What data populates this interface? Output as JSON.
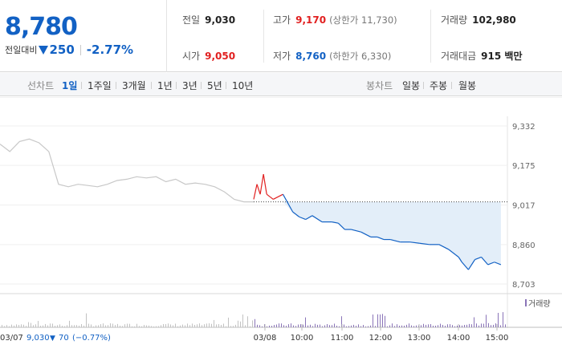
{
  "summary": {
    "price": "8,780",
    "diff_label": "전일대비",
    "diff_value": "250",
    "change_rate": "-2.77%",
    "prev_close": {
      "label": "전일",
      "value": "9,030"
    },
    "open": {
      "label": "시가",
      "value": "9,050"
    },
    "high": {
      "label": "고가",
      "value": "9,170",
      "limit_text": "(상한가 11,730)"
    },
    "low": {
      "label": "저가",
      "value": "8,760",
      "limit_text": "(하한가 6,330)"
    },
    "volume": {
      "label": "거래량",
      "value": "102,980"
    },
    "amount": {
      "label": "거래대금",
      "value": "915 백만"
    }
  },
  "tabs": {
    "line_label": "선차트",
    "line_tabs": [
      "1일",
      "1주일",
      "3개월",
      "1년",
      "3년",
      "5년",
      "10년"
    ],
    "active_line_tab": "1일",
    "candle_label": "봉차트",
    "candle_tabs": [
      "일봉",
      "주봉",
      "월봉"
    ]
  },
  "colors": {
    "up": "#e12020",
    "down": "#1261c4",
    "prev_day_line": "#c8c8c8",
    "fill": "#e3eef9",
    "volume": "#8a74b8"
  },
  "chart_data": {
    "type": "line",
    "ylim": [
      8703,
      9332
    ],
    "y_ticks": [
      "9,332",
      "9,175",
      "9,017",
      "8,860",
      "8,703"
    ],
    "y_tick_values": [
      9332,
      9175,
      9017,
      8860,
      8703
    ],
    "x_ticks": [
      "03/08",
      "10:00",
      "11:00",
      "12:00",
      "13:00",
      "14:00",
      "15:00"
    ],
    "prev_close_ref": 9030,
    "volume_legend": "거래량",
    "prev_day_footer": {
      "date": "03/07",
      "close": "9,030",
      "arrow": "▼",
      "change": "70",
      "rate": "(−0.77%)"
    },
    "series": [
      {
        "name": "03/07",
        "x": [
          "09:00",
          "09:15",
          "09:30",
          "09:45",
          "10:00",
          "10:15",
          "10:30",
          "10:45",
          "11:00",
          "11:15",
          "11:30",
          "11:45",
          "12:00",
          "12:15",
          "12:30",
          "12:45",
          "13:00",
          "13:15",
          "13:30",
          "13:45",
          "14:00",
          "14:15",
          "14:30",
          "14:45",
          "15:00",
          "15:15",
          "15:30"
        ],
        "values": [
          9260,
          9230,
          9270,
          9280,
          9265,
          9230,
          9100,
          9090,
          9100,
          9095,
          9090,
          9100,
          9115,
          9120,
          9130,
          9125,
          9130,
          9110,
          9120,
          9100,
          9105,
          9100,
          9090,
          9070,
          9040,
          9030,
          9030
        ]
      },
      {
        "name": "03/08",
        "x": [
          "09:00",
          "09:05",
          "09:10",
          "09:15",
          "09:20",
          "09:25",
          "09:30",
          "09:45",
          "10:00",
          "10:05",
          "10:10",
          "10:20",
          "10:30",
          "10:45",
          "11:00",
          "11:10",
          "11:20",
          "11:30",
          "11:45",
          "12:00",
          "12:10",
          "12:20",
          "12:30",
          "12:45",
          "13:00",
          "13:15",
          "13:30",
          "13:45",
          "14:00",
          "14:05",
          "14:10",
          "14:15",
          "14:20",
          "14:30",
          "14:40",
          "14:50",
          "15:00",
          "15:10",
          "15:20"
        ],
        "values": [
          9040,
          9100,
          9060,
          9140,
          9060,
          9050,
          9040,
          9060,
          8990,
          8980,
          8970,
          8960,
          8975,
          8950,
          8950,
          8945,
          8920,
          8920,
          8910,
          8890,
          8890,
          8880,
          8880,
          8870,
          8870,
          8865,
          8860,
          8860,
          8840,
          8830,
          8820,
          8810,
          8790,
          8760,
          8800,
          8810,
          8780,
          8790,
          8780
        ]
      }
    ]
  }
}
